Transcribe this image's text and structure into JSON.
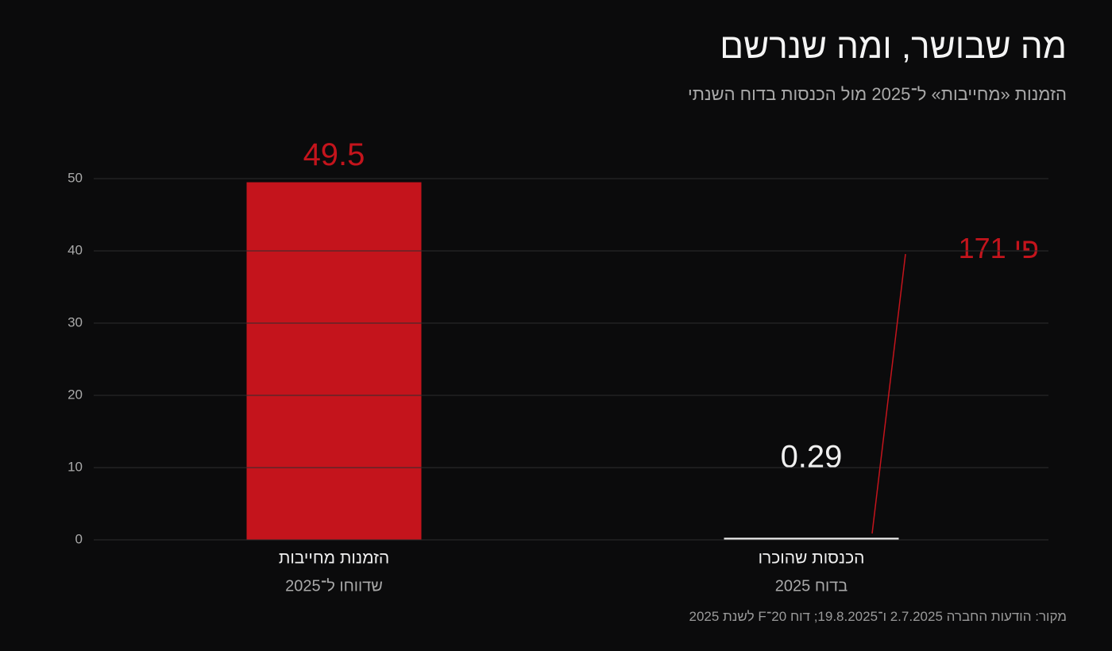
{
  "chart_data": {
    "type": "bar",
    "title": "מה שבושר, ומה שנרשם",
    "subtitle": "הזמנות «מחייבות» ל־2025 מול הכנסות בדוח השנתי",
    "categories": [
      "הזמנות מחייבות",
      "הכנסות שהוכרו"
    ],
    "category_sublabels": [
      "שדווחו ל־2025",
      "בדוח 2025"
    ],
    "values": [
      49.5,
      0.29
    ],
    "colors": [
      "#c4141c",
      "#f0f0f0"
    ],
    "ylim": [
      0,
      50
    ],
    "yticks": [
      0,
      10,
      20,
      30,
      40,
      50
    ],
    "grid": true,
    "annotation": "פי 171",
    "source": "מקור: הודעות החברה 2.7.2025 ו־19.8.2025; דוח 20־F לשנת 2025"
  }
}
